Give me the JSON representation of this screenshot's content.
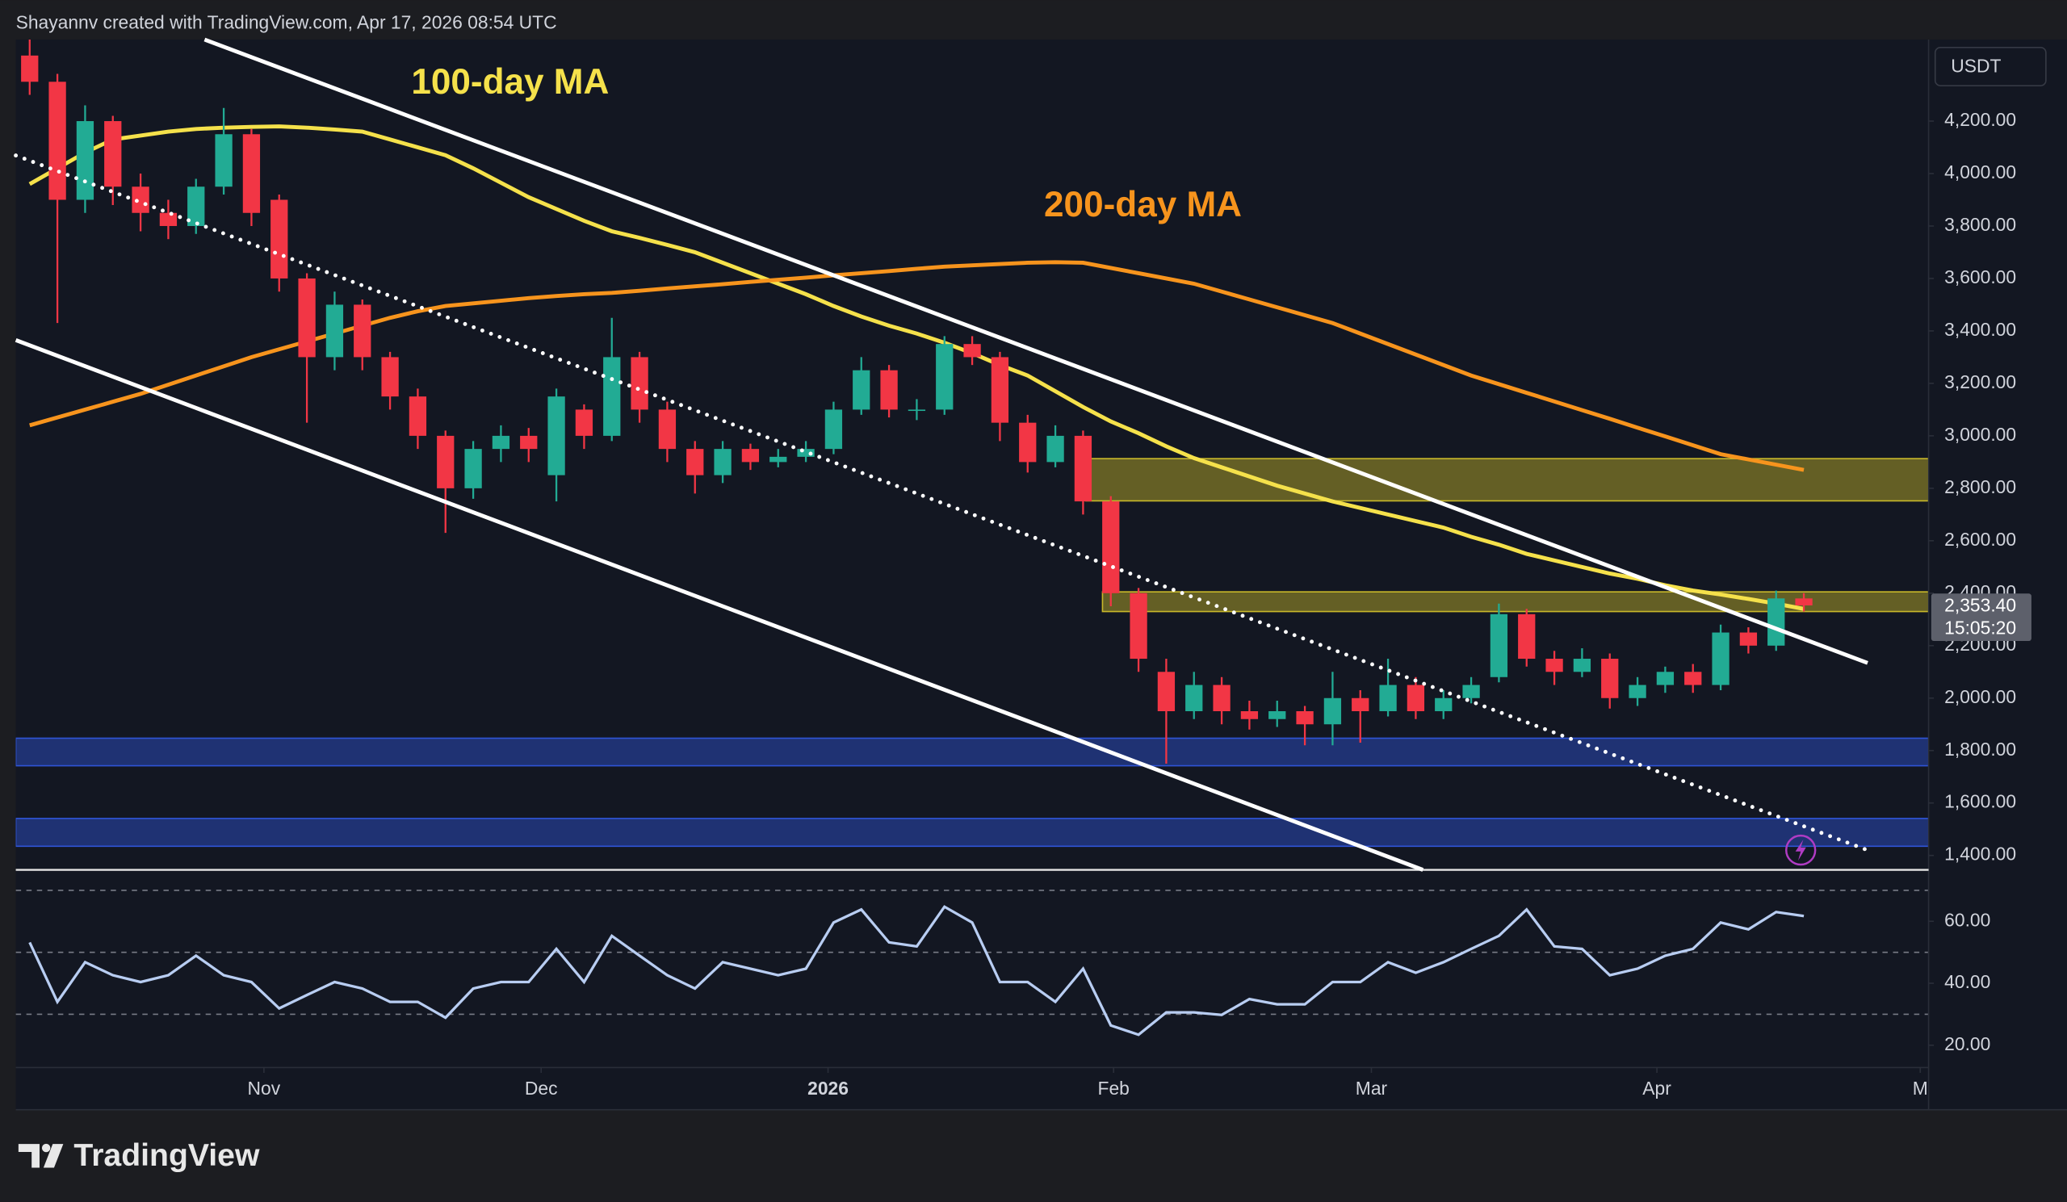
{
  "header": {
    "text": "Shayannv created with TradingView.com, Apr 17, 2026 08:54 UTC"
  },
  "footer": {
    "logo": "TradingView"
  },
  "chart_data": {
    "type": "candlestick",
    "currency_button": "USDT",
    "up_color": "#22ab94",
    "down_color": "#f23645",
    "xlim": [
      0,
      69
    ],
    "xticks": [
      {
        "value": 8.95,
        "label": "Nov"
      },
      {
        "value": 18.95,
        "label": "Dec"
      },
      {
        "value": 29.3,
        "label": "2026"
      },
      {
        "value": 39.6,
        "label": "Feb"
      },
      {
        "value": 48.9,
        "label": "Mar"
      },
      {
        "value": 59.2,
        "label": "Apr"
      },
      {
        "value": 68.7,
        "label": "M"
      }
    ],
    "ylim": [
      1345,
      4511
    ],
    "yticks": [
      {
        "value": 1400,
        "label": "1,400.00"
      },
      {
        "value": 1600,
        "label": "1,600.00"
      },
      {
        "value": 1800,
        "label": "1,800.00"
      },
      {
        "value": 2000,
        "label": "2,000.00"
      },
      {
        "value": 2200,
        "label": "2,200.00"
      },
      {
        "value": 2400,
        "label": "2,400.00"
      },
      {
        "value": 2600,
        "label": "2,600.00"
      },
      {
        "value": 2800,
        "label": "2,800.00"
      },
      {
        "value": 3000,
        "label": "3,000.00"
      },
      {
        "value": 3200,
        "label": "3,200.00"
      },
      {
        "value": 3400,
        "label": "3,400.00"
      },
      {
        "value": 3600,
        "label": "3,600.00"
      },
      {
        "value": 3800,
        "label": "3,800.00"
      },
      {
        "value": 4000,
        "label": "4,000.00"
      },
      {
        "value": 4200,
        "label": "4,200.00"
      }
    ],
    "candles": {
      "open": [
        4450,
        4350,
        3900,
        4200,
        3950,
        3850,
        3800,
        3950,
        4150,
        3900,
        3600,
        3300,
        3500,
        3300,
        3150,
        3000,
        2800,
        2950,
        3000,
        2850,
        3100,
        3000,
        3300,
        3100,
        2950,
        2850,
        2950,
        2900,
        2920,
        2950,
        3100,
        3250,
        3100,
        3100,
        3350,
        3300,
        3050,
        2900,
        3000,
        2750,
        2400,
        2100,
        1950,
        2050,
        1950,
        1920,
        1950,
        1900,
        2000,
        1950,
        2050,
        1950,
        2000,
        2080,
        2320,
        2150,
        2100,
        2150,
        2000,
        2050,
        2100,
        2050,
        2250,
        2200,
        2380
      ],
      "high": [
        4520,
        4380,
        4260,
        4220,
        4000,
        3900,
        3980,
        4250,
        4170,
        3920,
        3620,
        3550,
        3520,
        3320,
        3180,
        3020,
        2980,
        3040,
        3030,
        3180,
        3120,
        3450,
        3320,
        3130,
        2980,
        2980,
        2970,
        2950,
        2980,
        3130,
        3300,
        3270,
        3140,
        3380,
        3380,
        3320,
        3080,
        3040,
        3020,
        2770,
        2420,
        2150,
        2100,
        2080,
        1990,
        1990,
        1970,
        2100,
        2030,
        2150,
        2080,
        2030,
        2080,
        2360,
        2340,
        2180,
        2190,
        2170,
        2080,
        2120,
        2130,
        2280,
        2270,
        2410,
        2400
      ],
      "low": [
        4300,
        3430,
        3850,
        3880,
        3780,
        3750,
        3770,
        3920,
        3800,
        3550,
        3050,
        3250,
        3250,
        3100,
        2950,
        2630,
        2760,
        2900,
        2900,
        2750,
        2950,
        2980,
        3050,
        2900,
        2780,
        2820,
        2870,
        2880,
        2900,
        2930,
        3080,
        3070,
        3060,
        3080,
        3270,
        2980,
        2860,
        2880,
        2700,
        2350,
        2100,
        1750,
        1920,
        1900,
        1880,
        1890,
        1820,
        1820,
        1830,
        1930,
        1920,
        1920,
        1980,
        2060,
        2120,
        2050,
        2080,
        1960,
        1970,
        2020,
        2020,
        2030,
        2170,
        2180,
        2330
      ],
      "close": [
        4350,
        3900,
        4200,
        3950,
        3850,
        3800,
        3950,
        4150,
        3850,
        3600,
        3300,
        3500,
        3300,
        3150,
        3000,
        2800,
        2950,
        3000,
        2950,
        3150,
        3000,
        3300,
        3100,
        2950,
        2850,
        2950,
        2900,
        2920,
        2950,
        3100,
        3250,
        3100,
        3100,
        3350,
        3300,
        3050,
        2900,
        3000,
        2750,
        2400,
        2150,
        1950,
        2050,
        1950,
        1920,
        1950,
        1900,
        2000,
        1950,
        2050,
        1950,
        2000,
        2050,
        2320,
        2150,
        2100,
        2150,
        2000,
        2050,
        2100,
        2050,
        2250,
        2200,
        2380,
        2353.4
      ]
    },
    "last_price": {
      "value": 2353.4,
      "label": "2,353.40"
    },
    "countdown": "15:05:20",
    "series": [
      {
        "name": "100-day MA",
        "color": "#f5e14b",
        "values": [
          3960,
          4020,
          4080,
          4130,
          4145,
          4160,
          4170,
          4175,
          4178,
          4180,
          4175,
          4168,
          4160,
          4130,
          4100,
          4070,
          4020,
          3965,
          3910,
          3865,
          3820,
          3780,
          3755,
          3728,
          3700,
          3660,
          3620,
          3580,
          3540,
          3495,
          3455,
          3420,
          3390,
          3355,
          3315,
          3270,
          3230,
          3170,
          3110,
          3055,
          3010,
          2960,
          2915,
          2880,
          2845,
          2810,
          2780,
          2750,
          2725,
          2700,
          2675,
          2650,
          2615,
          2585,
          2550,
          2525,
          2500,
          2475,
          2455,
          2430,
          2410,
          2395,
          2378,
          2360,
          2340
        ]
      },
      {
        "name": "200-day MA",
        "color": "#f7941d",
        "values": [
          3040,
          3070,
          3100,
          3130,
          3160,
          3195,
          3230,
          3265,
          3300,
          3330,
          3360,
          3390,
          3420,
          3450,
          3475,
          3495,
          3505,
          3515,
          3525,
          3533,
          3540,
          3545,
          3553,
          3562,
          3570,
          3578,
          3587,
          3595,
          3603,
          3612,
          3620,
          3628,
          3637,
          3645,
          3650,
          3655,
          3660,
          3662,
          3660,
          3640,
          3620,
          3600,
          3580,
          3550,
          3520,
          3490,
          3460,
          3430,
          3390,
          3350,
          3310,
          3270,
          3230,
          3197,
          3164,
          3131,
          3098,
          3065,
          3031,
          2998,
          2964,
          2930,
          2910,
          2890,
          2870
        ]
      }
    ],
    "trendlines": [
      {
        "x": [
          6.81,
          66.8
        ],
        "y": [
          4511,
          2134
        ],
        "style": "solid"
      },
      {
        "x": [
          0,
          50.76
        ],
        "y": [
          3365,
          1345
        ],
        "style": "solid"
      },
      {
        "x": [
          0,
          66.8
        ],
        "y": [
          4069,
          1420
        ],
        "style": "dotted"
      }
    ],
    "zones": [
      {
        "xstart": 38.6,
        "y": [
          2752,
          2913
        ],
        "color": "#c8b82a"
      },
      {
        "xstart": 39.2,
        "y": [
          2330,
          2405
        ],
        "color": "#c8b82a"
      },
      {
        "xstart": 0,
        "y": [
          1742,
          1847
        ],
        "color": "#2f54d6"
      },
      {
        "xstart": 0,
        "y": [
          1435,
          1541
        ],
        "color": "#2f54d6"
      }
    ],
    "rsi": {
      "color": "#b8cdf2",
      "ylim": [
        12.8,
        76.6
      ],
      "yticks": [
        {
          "value": 20,
          "label": "20.00"
        },
        {
          "value": 40,
          "label": "40.00"
        },
        {
          "value": 60,
          "label": "60.00"
        }
      ],
      "levels": [
        70,
        50,
        30
      ],
      "values": [
        53.2,
        34,
        46.8,
        42.6,
        40.4,
        42.6,
        48.9,
        42.6,
        40.4,
        31.9,
        36.2,
        40.4,
        38.3,
        34,
        34,
        28.9,
        38.3,
        40.4,
        40.4,
        51.1,
        40.4,
        55.3,
        48.9,
        42.6,
        38.3,
        46.8,
        44.7,
        42.6,
        44.7,
        59.6,
        63.8,
        53.2,
        51.9,
        64.7,
        59.6,
        40.4,
        40.4,
        34,
        44.7,
        26.4,
        23.4,
        30.6,
        30.6,
        29.8,
        34.9,
        33.2,
        33.2,
        40.4,
        40.4,
        46.8,
        43.4,
        46.8,
        51.1,
        55.3,
        63.8,
        51.9,
        51.1,
        42.6,
        44.7,
        48.9,
        51.1,
        59.6,
        57.4,
        63,
        61.7
      ]
    }
  }
}
